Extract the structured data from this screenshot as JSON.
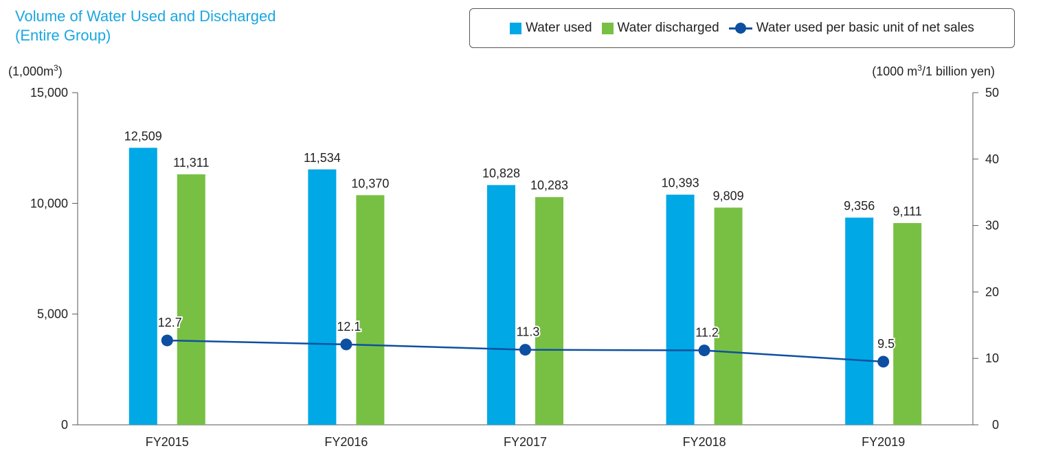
{
  "chart_data": {
    "type": "bar",
    "title": [
      "Volume of Water Used and Discharged",
      "(Entire Group)"
    ],
    "categories": [
      "FY2015",
      "FY2016",
      "FY2017",
      "FY2018",
      "FY2019"
    ],
    "series": [
      {
        "name": "Water used",
        "type": "bar",
        "axis": "left",
        "color": "#00a8e6",
        "values": [
          12509,
          11534,
          10828,
          10393,
          9356
        ],
        "labels": [
          "12,509",
          "11,534",
          "10,828",
          "10,393",
          "9,356"
        ]
      },
      {
        "name": "Water discharged",
        "type": "bar",
        "axis": "left",
        "color": "#78c043",
        "values": [
          11311,
          10370,
          10283,
          9809,
          9111
        ],
        "labels": [
          "11,311",
          "10,370",
          "10,283",
          "9,809",
          "9,111"
        ]
      },
      {
        "name": "Water used per basic unit of net sales",
        "type": "line",
        "axis": "right",
        "color": "#0d4fa0",
        "values": [
          12.7,
          12.1,
          11.3,
          11.2,
          9.5
        ],
        "labels": [
          "12.7",
          "12.1",
          "11.3",
          "11.2",
          "9.5"
        ]
      }
    ],
    "y_left": {
      "unit_prefix": "(1,000m",
      "unit_sup": "3",
      "unit_suffix": ")",
      "range": [
        0,
        15000
      ],
      "ticks": [
        0,
        5000,
        10000,
        15000
      ],
      "tick_labels": [
        "0",
        "5,000",
        "10,000",
        "15,000"
      ]
    },
    "y_right": {
      "unit_prefix": "(1000 m",
      "unit_sup": "3",
      "unit_suffix": "/1 billion yen)",
      "range": [
        0,
        50
      ],
      "ticks": [
        0,
        10,
        20,
        30,
        40,
        50
      ],
      "tick_labels": [
        "0",
        "10",
        "20",
        "30",
        "40",
        "50"
      ]
    },
    "grid": false,
    "legend_position": "top-right"
  }
}
